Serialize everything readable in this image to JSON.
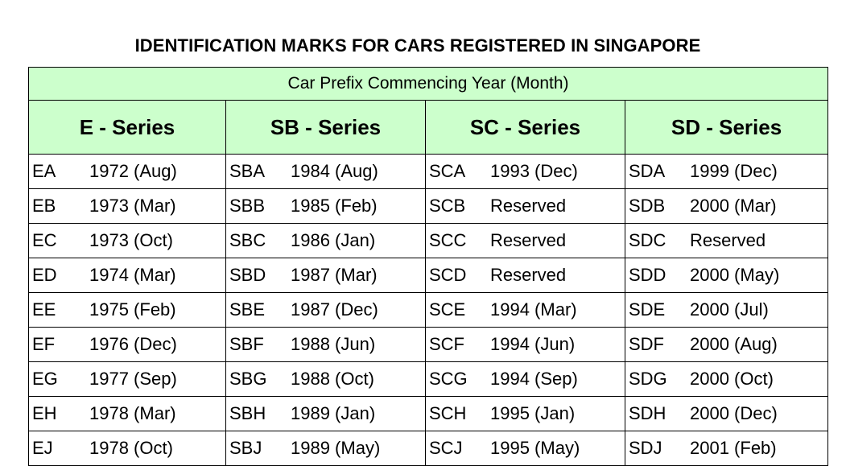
{
  "title": "IDENTIFICATION MARKS FOR CARS REGISTERED IN SINGAPORE",
  "table": {
    "caption": "Car Prefix Commencing Year (Month)",
    "series_headers": [
      "E - Series",
      "SB - Series",
      "SC - Series",
      "SD - Series"
    ],
    "rows": [
      [
        {
          "prefix": "EA",
          "date": "1972 (Aug)"
        },
        {
          "prefix": "SBA",
          "date": "1984 (Aug)"
        },
        {
          "prefix": "SCA",
          "date": "1993 (Dec)"
        },
        {
          "prefix": "SDA",
          "date": "1999 (Dec)"
        }
      ],
      [
        {
          "prefix": "EB",
          "date": "1973 (Mar)"
        },
        {
          "prefix": "SBB",
          "date": "1985 (Feb)"
        },
        {
          "prefix": "SCB",
          "date": "Reserved"
        },
        {
          "prefix": "SDB",
          "date": "2000 (Mar)"
        }
      ],
      [
        {
          "prefix": "EC",
          "date": "1973 (Oct)"
        },
        {
          "prefix": "SBC",
          "date": "1986 (Jan)"
        },
        {
          "prefix": "SCC",
          "date": "Reserved"
        },
        {
          "prefix": "SDC",
          "date": "Reserved"
        }
      ],
      [
        {
          "prefix": "ED",
          "date": "1974 (Mar)"
        },
        {
          "prefix": "SBD",
          "date": "1987 (Mar)"
        },
        {
          "prefix": "SCD",
          "date": "Reserved"
        },
        {
          "prefix": "SDD",
          "date": "2000 (May)"
        }
      ],
      [
        {
          "prefix": "EE",
          "date": "1975 (Feb)"
        },
        {
          "prefix": "SBE",
          "date": "1987 (Dec)"
        },
        {
          "prefix": "SCE",
          "date": "1994 (Mar)"
        },
        {
          "prefix": "SDE",
          "date": "2000 (Jul)"
        }
      ],
      [
        {
          "prefix": "EF",
          "date": "1976 (Dec)"
        },
        {
          "prefix": "SBF",
          "date": "1988 (Jun)"
        },
        {
          "prefix": "SCF",
          "date": "1994 (Jun)"
        },
        {
          "prefix": "SDF",
          "date": "2000 (Aug)"
        }
      ],
      [
        {
          "prefix": "EG",
          "date": "1977 (Sep)"
        },
        {
          "prefix": "SBG",
          "date": "1988 (Oct)"
        },
        {
          "prefix": "SCG",
          "date": "1994 (Sep)"
        },
        {
          "prefix": "SDG",
          "date": "2000 (Oct)"
        }
      ],
      [
        {
          "prefix": "EH",
          "date": "1978 (Mar)"
        },
        {
          "prefix": "SBH",
          "date": "1989 (Jan)"
        },
        {
          "prefix": "SCH",
          "date": "1995 (Jan)"
        },
        {
          "prefix": "SDH",
          "date": "2000 (Dec)"
        }
      ],
      [
        {
          "prefix": "EJ",
          "date": "1978 (Oct)"
        },
        {
          "prefix": "SBJ",
          "date": "1989 (May)"
        },
        {
          "prefix": "SCJ",
          "date": "1995 (May)"
        },
        {
          "prefix": "SDJ",
          "date": "2001 (Feb)"
        }
      ]
    ]
  }
}
